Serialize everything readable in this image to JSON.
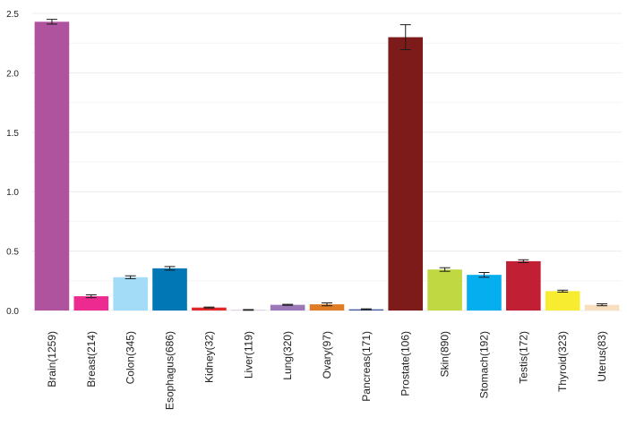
{
  "chart_data": {
    "type": "bar",
    "categories": [
      "Brain(1259)",
      "Breast(214)",
      "Colon(345)",
      "Esophagus(686)",
      "Kidney(32)",
      "Liver(119)",
      "Lung(320)",
      "Ovary(97)",
      "Pancreas(171)",
      "Prostate(106)",
      "Skin(890)",
      "Stomach(192)",
      "Testis(172)",
      "Thyroid(323)",
      "Uterus(83)"
    ],
    "values": [
      2.43,
      0.12,
      0.28,
      0.355,
      0.025,
      0.005,
      0.048,
      0.052,
      0.01,
      2.3,
      0.345,
      0.3,
      0.415,
      0.163,
      0.048
    ],
    "errors": [
      0.02,
      0.012,
      0.012,
      0.015,
      0.004,
      0.003,
      0.004,
      0.012,
      0.004,
      0.105,
      0.015,
      0.02,
      0.012,
      0.008,
      0.008
    ],
    "colors": [
      "#b0539f",
      "#ec2a90",
      "#a3dcf6",
      "#0277b5",
      "#e2272b",
      "#d9b8d8",
      "#9b79b9",
      "#e07c25",
      "#3f5a9e",
      "#7d1a1a",
      "#c0d841",
      "#05aeef",
      "#c11f33",
      "#f8ec31",
      "#f7dfc0"
    ],
    "yticks": [
      "0.0",
      "0.5",
      "1.0",
      "1.5",
      "2.0",
      "2.5"
    ],
    "ylim": [
      0,
      2.5
    ],
    "title": "",
    "xlabel": "",
    "ylabel": "",
    "grid": true
  }
}
